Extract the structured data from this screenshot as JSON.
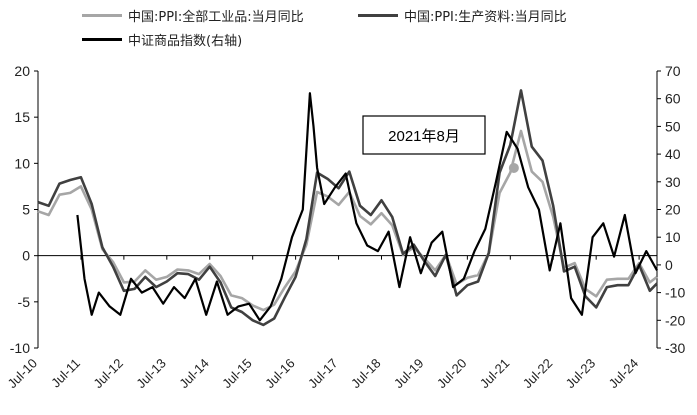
{
  "legend": [
    {
      "label": "中国:PPI:全部工业品:当月同比",
      "color": "#a6a6a6"
    },
    {
      "label": "中国:PPI:生产资料:当月同比",
      "color": "#404040"
    },
    {
      "label": "中证商品指数(右轴)",
      "color": "#000000"
    }
  ],
  "annotation": {
    "text": "2021年8月"
  },
  "chart_data": {
    "type": "line",
    "title": "",
    "xlabel": "",
    "ylabel": "",
    "x_ticks": [
      "Jul-10",
      "Jul-11",
      "Jul-12",
      "Jul-13",
      "Jul-14",
      "Jul-15",
      "Jul-16",
      "Jul-17",
      "Jul-18",
      "Jul-19",
      "Jul-20",
      "Jul-21",
      "Jul-22",
      "Jul-23",
      "Jul-24"
    ],
    "x_range": [
      "2010-07",
      "2024-12"
    ],
    "ylim_left": [
      -10,
      20
    ],
    "yticks_left": [
      -10,
      -5,
      0,
      5,
      10,
      15,
      20
    ],
    "ylim_right": [
      -30,
      70
    ],
    "yticks_right": [
      -30,
      -20,
      -10,
      0,
      10,
      20,
      30,
      40,
      50,
      60,
      70
    ],
    "grid": false,
    "highlight_point": {
      "series": 0,
      "x": "2021-08",
      "y": 9.5
    },
    "series": [
      {
        "name": "中国:PPI:全部工业品:当月同比",
        "axis": "left",
        "color": "#a6a6a6",
        "x": [
          "2010-07",
          "2010-10",
          "2011-01",
          "2011-04",
          "2011-07",
          "2011-10",
          "2012-01",
          "2012-04",
          "2012-07",
          "2012-10",
          "2013-01",
          "2013-04",
          "2013-07",
          "2013-10",
          "2014-01",
          "2014-04",
          "2014-07",
          "2014-10",
          "2015-01",
          "2015-04",
          "2015-07",
          "2015-10",
          "2016-01",
          "2016-04",
          "2016-07",
          "2016-10",
          "2017-01",
          "2017-04",
          "2017-07",
          "2017-10",
          "2018-01",
          "2018-04",
          "2018-07",
          "2018-10",
          "2019-01",
          "2019-04",
          "2019-07",
          "2019-10",
          "2020-01",
          "2020-04",
          "2020-07",
          "2020-10",
          "2021-01",
          "2021-04",
          "2021-07",
          "2021-10",
          "2022-01",
          "2022-04",
          "2022-07",
          "2022-10",
          "2023-01",
          "2023-04",
          "2023-07",
          "2023-10",
          "2024-01",
          "2024-04",
          "2024-07",
          "2024-10",
          "2024-12"
        ],
        "values": [
          4.8,
          4.4,
          6.6,
          6.8,
          7.5,
          5.0,
          0.7,
          -0.7,
          -2.9,
          -2.8,
          -1.6,
          -2.6,
          -2.3,
          -1.5,
          -1.6,
          -2.0,
          -0.9,
          -2.2,
          -4.3,
          -4.6,
          -5.4,
          -5.9,
          -5.3,
          -3.4,
          -1.7,
          1.2,
          6.9,
          6.4,
          5.5,
          6.9,
          4.3,
          3.4,
          4.6,
          3.3,
          0.1,
          0.9,
          -0.3,
          -1.6,
          0.1,
          -3.1,
          -2.4,
          -2.1,
          0.3,
          6.8,
          9.0,
          13.5,
          9.1,
          8.0,
          4.2,
          -1.3,
          -0.8,
          -3.6,
          -4.4,
          -2.6,
          -2.5,
          -2.5,
          -0.8,
          -2.9,
          -2.3
        ]
      },
      {
        "name": "中国:PPI:生产资料:当月同比",
        "axis": "left",
        "color": "#404040",
        "x": [
          "2010-07",
          "2010-10",
          "2011-01",
          "2011-04",
          "2011-07",
          "2011-10",
          "2012-01",
          "2012-04",
          "2012-07",
          "2012-10",
          "2013-01",
          "2013-04",
          "2013-07",
          "2013-10",
          "2014-01",
          "2014-04",
          "2014-07",
          "2014-10",
          "2015-01",
          "2015-04",
          "2015-07",
          "2015-10",
          "2016-01",
          "2016-04",
          "2016-07",
          "2016-10",
          "2017-01",
          "2017-04",
          "2017-07",
          "2017-10",
          "2018-01",
          "2018-04",
          "2018-07",
          "2018-10",
          "2019-01",
          "2019-04",
          "2019-07",
          "2019-10",
          "2020-01",
          "2020-04",
          "2020-07",
          "2020-10",
          "2021-01",
          "2021-04",
          "2021-07",
          "2021-10",
          "2022-01",
          "2022-04",
          "2022-07",
          "2022-10",
          "2023-01",
          "2023-04",
          "2023-07",
          "2023-10",
          "2024-01",
          "2024-04",
          "2024-07",
          "2024-10",
          "2024-12"
        ],
        "values": [
          5.8,
          5.4,
          7.8,
          8.2,
          8.5,
          5.6,
          0.9,
          -1.2,
          -3.8,
          -3.6,
          -2.3,
          -3.4,
          -2.8,
          -1.9,
          -2.0,
          -2.6,
          -1.2,
          -2.9,
          -5.6,
          -6.1,
          -7.0,
          -7.5,
          -6.8,
          -4.5,
          -2.3,
          1.8,
          9.0,
          8.3,
          7.3,
          9.1,
          5.4,
          4.4,
          6.0,
          4.2,
          0.2,
          1.2,
          -0.6,
          -2.2,
          0.1,
          -4.3,
          -3.2,
          -2.8,
          0.3,
          9.0,
          12.0,
          17.9,
          11.8,
          10.3,
          5.4,
          -1.7,
          -1.2,
          -4.4,
          -5.6,
          -3.4,
          -3.2,
          -3.2,
          -1.0,
          -3.8,
          -3.0
        ]
      },
      {
        "name": "中证商品指数(右轴)",
        "axis": "right",
        "color": "#000000",
        "x": [
          "2011-06",
          "2011-08",
          "2011-10",
          "2011-12",
          "2012-03",
          "2012-06",
          "2012-09",
          "2012-12",
          "2013-03",
          "2013-06",
          "2013-09",
          "2013-12",
          "2014-03",
          "2014-06",
          "2014-09",
          "2014-12",
          "2015-03",
          "2015-06",
          "2015-09",
          "2015-12",
          "2016-03",
          "2016-06",
          "2016-09",
          "2016-11",
          "2016-12",
          "2017-01",
          "2017-03",
          "2017-06",
          "2017-09",
          "2017-12",
          "2018-03",
          "2018-06",
          "2018-09",
          "2018-12",
          "2019-03",
          "2019-06",
          "2019-09",
          "2019-12",
          "2020-03",
          "2020-06",
          "2020-09",
          "2020-12",
          "2021-03",
          "2021-06",
          "2021-09",
          "2021-12",
          "2022-03",
          "2022-06",
          "2022-09",
          "2022-12",
          "2023-03",
          "2023-06",
          "2023-09",
          "2023-12",
          "2024-03",
          "2024-06",
          "2024-09",
          "2024-12"
        ],
        "values": [
          18,
          -5,
          -18,
          -10,
          -15,
          -18,
          -5,
          -10,
          -8,
          -14,
          -8,
          -12,
          -5,
          -18,
          -6,
          -18,
          -15,
          -14,
          -20,
          -15,
          -5,
          10,
          20,
          62,
          50,
          35,
          22,
          28,
          33,
          15,
          7,
          5,
          12,
          -8,
          10,
          -3,
          8,
          12,
          -8,
          -5,
          5,
          13,
          30,
          48,
          42,
          28,
          20,
          -2,
          15,
          -12,
          -18,
          10,
          15,
          3,
          18,
          -3,
          5,
          -2
        ]
      }
    ]
  }
}
